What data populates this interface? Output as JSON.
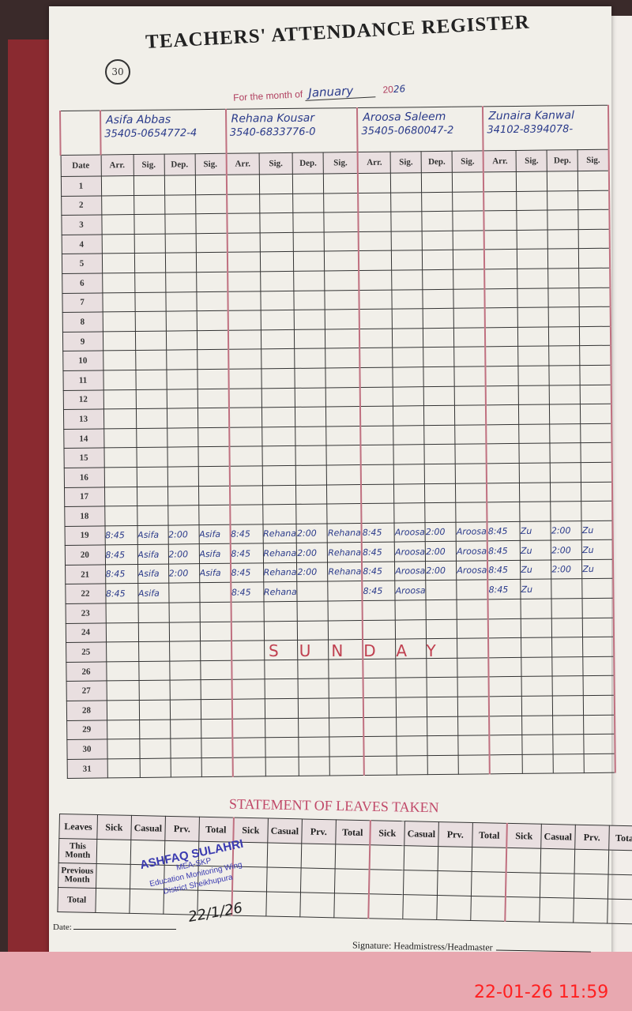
{
  "page_number": "30",
  "title": "TEACHERS' ATTENDANCE REGISTER",
  "month_label": "For the month of",
  "month": "January",
  "year_prefix": "20",
  "year": "26",
  "date_header": "Date",
  "columns": [
    "Arr.",
    "Sig.",
    "Dep.",
    "Sig."
  ],
  "teachers": [
    {
      "name": "Asifa Abbas",
      "cnic": "35405-0654772-4",
      "entries": {
        "19": [
          "8:45",
          "Asifa",
          "2:00",
          "Asifa"
        ],
        "20": [
          "8:45",
          "Asifa",
          "2:00",
          "Asifa"
        ],
        "21": [
          "8:45",
          "Asifa",
          "2:00",
          "Asifa"
        ],
        "22": [
          "8:45",
          "Asifa",
          "",
          ""
        ]
      }
    },
    {
      "name": "Rehana Kousar",
      "cnic": "3540-6833776-0",
      "entries": {
        "19": [
          "8:45",
          "Rehana",
          "2:00",
          "Rehana"
        ],
        "20": [
          "8:45",
          "Rehana",
          "2:00",
          "Rehana"
        ],
        "21": [
          "8:45",
          "Rehana",
          "2:00",
          "Rehana"
        ],
        "22": [
          "8:45",
          "Rehana",
          "",
          ""
        ]
      }
    },
    {
      "name": "Aroosa Saleem",
      "cnic": "35405-0680047-2",
      "entries": {
        "19": [
          "8:45",
          "Aroosa",
          "2:00",
          "Aroosa"
        ],
        "20": [
          "8:45",
          "Aroosa",
          "2:00",
          "Aroosa"
        ],
        "21": [
          "8:45",
          "Aroosa",
          "2:00",
          "Aroosa"
        ],
        "22": [
          "8:45",
          "Aroosa",
          "",
          ""
        ]
      }
    },
    {
      "name": "Zunaira Kanwal",
      "cnic": "34102-8394078-",
      "entries": {
        "19": [
          "8:45",
          "Zu",
          "2:00",
          "Zu"
        ],
        "20": [
          "8:45",
          "Zu",
          "2:00",
          "Zu"
        ],
        "21": [
          "8:45",
          "Zu",
          "2:00",
          "Zu"
        ],
        "22": [
          "8:45",
          "Zu",
          "",
          ""
        ]
      }
    }
  ],
  "days": [
    "1",
    "2",
    "3",
    "4",
    "5",
    "6",
    "7",
    "8",
    "9",
    "10",
    "11",
    "12",
    "13",
    "14",
    "15",
    "16",
    "17",
    "18",
    "19",
    "20",
    "21",
    "22",
    "23",
    "24",
    "25",
    "26",
    "27",
    "28",
    "29",
    "30",
    "31"
  ],
  "sunday_day": "25",
  "sunday_label": "SUNDAY",
  "leaves": {
    "title": "STATEMENT OF LEAVES TAKEN",
    "row_header": "Leaves",
    "columns": [
      "Sick",
      "Casual",
      "Prv.",
      "Total"
    ],
    "rows": [
      "This Month",
      "Previous Month",
      "Total"
    ]
  },
  "stamp": {
    "line1": "ASHFAQ SULAHRI",
    "line2": "MEA-SKP",
    "line3": "Education Monitoring Wing",
    "line4": "District Sheikhupura"
  },
  "stamp_date": "22/1/26",
  "date_label": "Date:",
  "signature_label": "Signature: Headmistress/Headmaster",
  "timestamp": "22-01-26  11:59",
  "colors": {
    "ink": "#2a3a8a",
    "rule": "#c07080",
    "timestamp": "#ff2020"
  }
}
